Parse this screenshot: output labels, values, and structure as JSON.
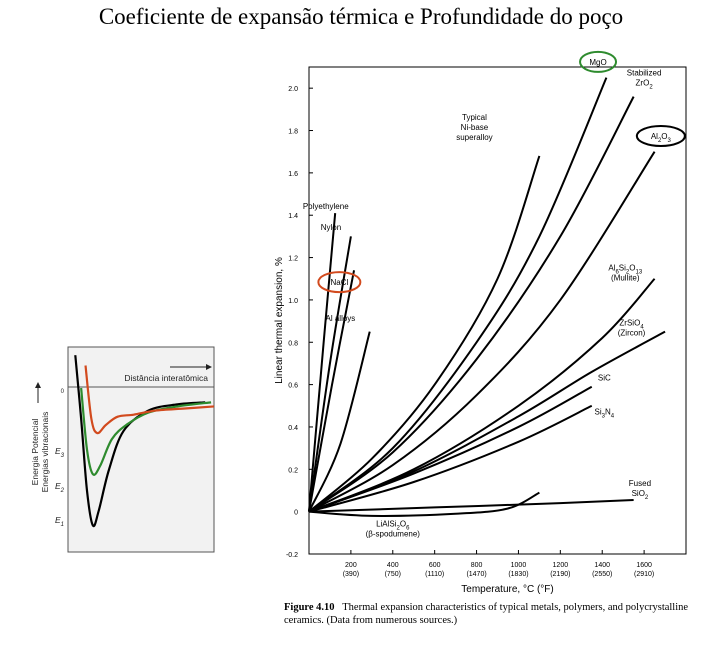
{
  "slide_title": "Coeficiente de expansão térmica e Profundidade do poço",
  "caption": {
    "figure_label": "Figure 4.10",
    "text": "Thermal expansion characteristics of typical metals, polymers, and polycrystalline ceramics. (Data from numerous sources.)"
  },
  "highlight_colors": {
    "green": "#2e8b2e",
    "red": "#d24a1e"
  },
  "chart_data": [
    {
      "type": "line",
      "title": "",
      "xlabel": "Distância interatômica",
      "ylabel": "Energia Potencial / Energias vibracionais",
      "y_tick_labels": [
        "0",
        "E3",
        "E2",
        "E1"
      ],
      "colors": {
        "frame": "#555555",
        "background": "#f2f2f2"
      },
      "series": [
        {
          "color": "#000000",
          "points": [
            [
              0.05,
              0.04
            ],
            [
              0.09,
              0.35
            ],
            [
              0.13,
              0.7
            ],
            [
              0.17,
              0.87
            ],
            [
              0.21,
              0.8
            ],
            [
              0.28,
              0.6
            ],
            [
              0.38,
              0.41
            ],
            [
              0.55,
              0.31
            ],
            [
              0.75,
              0.28
            ],
            [
              0.94,
              0.27
            ]
          ]
        },
        {
          "color": "#2e8b2e",
          "points": [
            [
              0.09,
              0.2
            ],
            [
              0.13,
              0.5
            ],
            [
              0.17,
              0.62
            ],
            [
              0.22,
              0.58
            ],
            [
              0.3,
              0.45
            ],
            [
              0.4,
              0.38
            ],
            [
              0.55,
              0.32
            ],
            [
              0.75,
              0.29
            ],
            [
              0.98,
              0.27
            ]
          ]
        },
        {
          "color": "#d24a1e",
          "points": [
            [
              0.12,
              0.09
            ],
            [
              0.16,
              0.35
            ],
            [
              0.2,
              0.42
            ],
            [
              0.26,
              0.38
            ],
            [
              0.34,
              0.34
            ],
            [
              0.45,
              0.33
            ],
            [
              0.6,
              0.31
            ],
            [
              0.8,
              0.3
            ],
            [
              1.0,
              0.29
            ]
          ]
        }
      ]
    },
    {
      "type": "line",
      "title": "",
      "xlabel": "Temperature, °C (°F)",
      "ylabel": "Linear thermal expansion, %",
      "xlim": [
        0,
        1800
      ],
      "ylim": [
        -0.2,
        2.1
      ],
      "x_ticks": [
        {
          "value": 200,
          "label": "200",
          "sublabel": "(390)"
        },
        {
          "value": 400,
          "label": "400",
          "sublabel": "(750)"
        },
        {
          "value": 600,
          "label": "600",
          "sublabel": "(1110)"
        },
        {
          "value": 800,
          "label": "800",
          "sublabel": "(1470)"
        },
        {
          "value": 1000,
          "label": "1000",
          "sublabel": "(1830)"
        },
        {
          "value": 1200,
          "label": "1200",
          "sublabel": "(2190)"
        },
        {
          "value": 1400,
          "label": "1400",
          "sublabel": "(2550)"
        },
        {
          "value": 1600,
          "label": "1600",
          "sublabel": "(2910)"
        }
      ],
      "y_ticks": [
        {
          "value": -0.2,
          "label": "-0.2"
        },
        {
          "value": 0,
          "label": "0"
        },
        {
          "value": 0.2,
          "label": "0.2"
        },
        {
          "value": 0.4,
          "label": "0.4"
        },
        {
          "value": 0.6,
          "label": "0.6"
        },
        {
          "value": 0.8,
          "label": "0.8"
        },
        {
          "value": 1.0,
          "label": "1.0"
        },
        {
          "value": 1.2,
          "label": "1.2"
        },
        {
          "value": 1.4,
          "label": "1.4"
        },
        {
          "value": 1.6,
          "label": "1.6"
        },
        {
          "value": 1.8,
          "label": "1.8"
        },
        {
          "value": 2.0,
          "label": "2.0"
        }
      ],
      "series": [
        {
          "name": "Polyethylene",
          "points": [
            [
              0,
              0
            ],
            [
              70,
              0.8
            ],
            [
              125,
              1.41
            ]
          ]
        },
        {
          "name": "Nylon",
          "points": [
            [
              0,
              0
            ],
            [
              100,
              0.7
            ],
            [
              200,
              1.3
            ]
          ]
        },
        {
          "name": "NaCl",
          "points": [
            [
              0,
              0
            ],
            [
              110,
              0.6
            ],
            [
              215,
              1.14
            ]
          ]
        },
        {
          "name": "Al alloys",
          "points": [
            [
              0,
              0
            ],
            [
              150,
              0.32
            ],
            [
              290,
              0.85
            ]
          ]
        },
        {
          "name": "Typical Ni-base superalloy",
          "points": [
            [
              0,
              0
            ],
            [
              300,
              0.25
            ],
            [
              600,
              0.6
            ],
            [
              900,
              1.1
            ],
            [
              1100,
              1.68
            ]
          ]
        },
        {
          "name": "MgO",
          "points": [
            [
              0,
              0
            ],
            [
              400,
              0.3
            ],
            [
              800,
              0.8
            ],
            [
              1100,
              1.3
            ],
            [
              1420,
              2.05
            ]
          ]
        },
        {
          "name": "Stabilized ZrO2",
          "points": [
            [
              0,
              0
            ],
            [
              400,
              0.28
            ],
            [
              800,
              0.72
            ],
            [
              1200,
              1.3
            ],
            [
              1550,
              1.96
            ]
          ]
        },
        {
          "name": "Al2O3",
          "points": [
            [
              0,
              0
            ],
            [
              400,
              0.22
            ],
            [
              800,
              0.55
            ],
            [
              1200,
              1.0
            ],
            [
              1650,
              1.7
            ]
          ]
        },
        {
          "name": "Al6Si2O13 (Mullite)",
          "points": [
            [
              0,
              0
            ],
            [
              500,
              0.2
            ],
            [
              1000,
              0.5
            ],
            [
              1400,
              0.82
            ],
            [
              1650,
              1.1
            ]
          ]
        },
        {
          "name": "ZrSiO4 (Zircon)",
          "points": [
            [
              0,
              0
            ],
            [
              500,
              0.19
            ],
            [
              1000,
              0.45
            ],
            [
              1350,
              0.66
            ],
            [
              1700,
              0.85
            ]
          ]
        },
        {
          "name": "SiC",
          "points": [
            [
              0,
              0
            ],
            [
              500,
              0.18
            ],
            [
              1000,
              0.4
            ],
            [
              1350,
              0.59
            ]
          ]
        },
        {
          "name": "Si3N4",
          "points": [
            [
              0,
              0
            ],
            [
              500,
              0.14
            ],
            [
              1000,
              0.33
            ],
            [
              1350,
              0.5
            ]
          ]
        },
        {
          "name": "Fused SiO2",
          "points": [
            [
              0,
              0
            ],
            [
              600,
              0.02
            ],
            [
              1200,
              0.04
            ],
            [
              1550,
              0.055
            ]
          ]
        },
        {
          "name": "LiAlSi2O6 (β-spodumene)",
          "points": [
            [
              0,
              0
            ],
            [
              300,
              -0.02
            ],
            [
              700,
              -0.01
            ],
            [
              950,
              0.015
            ],
            [
              1100,
              0.09
            ]
          ]
        }
      ],
      "labels": [
        {
          "id": "polyethylene",
          "lines": [
            "Polyethylene"
          ],
          "x": 80,
          "y": 1.43
        },
        {
          "id": "nylon",
          "lines": [
            "Nylon"
          ],
          "x": 105,
          "y": 1.33
        },
        {
          "id": "nacl",
          "lines": [
            "NaCl"
          ],
          "x": 145,
          "y": 1.07,
          "circle": "red"
        },
        {
          "id": "al-alloys",
          "lines": [
            "Al alloys"
          ],
          "x": 150,
          "y": 0.9
        },
        {
          "id": "ni-superalloy",
          "lines": [
            "Typical",
            "Ni-base",
            "superalloy"
          ],
          "x": 790,
          "y": 1.85
        },
        {
          "id": "mgo",
          "lines": [
            "MgO"
          ],
          "x": 1380,
          "y": 2.11,
          "circle": "green"
        },
        {
          "id": "zro2",
          "lines": [
            "Stabilized",
            "ZrO2"
          ],
          "x": 1600,
          "y": 2.06
        },
        {
          "id": "al2o3",
          "lines": [
            "Al2O3"
          ],
          "x": 1680,
          "y": 1.76,
          "circle": "black"
        },
        {
          "id": "mullite",
          "lines": [
            "Al6Si2O13",
            "(Mullite)"
          ],
          "x": 1510,
          "y": 1.14
        },
        {
          "id": "zircon",
          "lines": [
            "ZrSiO4",
            "(Zircon)"
          ],
          "x": 1540,
          "y": 0.88
        },
        {
          "id": "sic",
          "lines": [
            "SiC"
          ],
          "x": 1410,
          "y": 0.62
        },
        {
          "id": "si3n4",
          "lines": [
            "Si3N4"
          ],
          "x": 1410,
          "y": 0.46
        },
        {
          "id": "fused-sio2",
          "lines": [
            "Fused",
            "SiO2"
          ],
          "x": 1580,
          "y": 0.12
        },
        {
          "id": "spodumene",
          "lines": [
            "LiAlSi2O6",
            "(β-spodumene)"
          ],
          "x": 400,
          "y": -0.07
        }
      ]
    }
  ]
}
